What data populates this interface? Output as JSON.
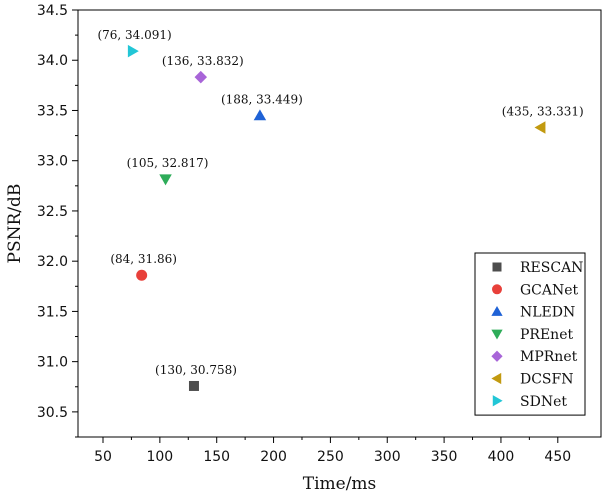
{
  "chart_data": {
    "type": "scatter",
    "title": "",
    "xlabel": "Time/ms",
    "ylabel": "PSNR/dB",
    "xlim": [
      28,
      488
    ],
    "ylim": [
      30.25,
      34.5
    ],
    "xticks": [
      50,
      100,
      150,
      200,
      250,
      300,
      350,
      400,
      450
    ],
    "yticks": [
      30.5,
      31.0,
      31.5,
      32.0,
      32.5,
      33.0,
      33.5,
      34.0,
      34.5
    ],
    "xtick_labels": [
      "50",
      "100",
      "150",
      "200",
      "250",
      "300",
      "350",
      "400",
      "450"
    ],
    "ytick_labels": [
      "30.5",
      "31.0",
      "31.5",
      "32.0",
      "32.5",
      "33.0",
      "33.5",
      "34.0",
      "34.5"
    ],
    "legend_position": "bottom-right",
    "series": [
      {
        "name": "RESCAN",
        "x": 130,
        "y": 30.758,
        "label": "(130, 30.758)",
        "color": "#4d4d4d",
        "marker": "square"
      },
      {
        "name": "GCANet",
        "x": 84,
        "y": 31.86,
        "label": "(84, 31.86)",
        "color": "#e8403a",
        "marker": "circle"
      },
      {
        "name": "NLEDN",
        "x": 188,
        "y": 33.449,
        "label": "(188, 33.449)",
        "color": "#1f62d6",
        "marker": "triangle-up"
      },
      {
        "name": "PREnet",
        "x": 105,
        "y": 32.817,
        "label": "(105, 32.817)",
        "color": "#2eac59",
        "marker": "triangle-down"
      },
      {
        "name": "MPRnet",
        "x": 136,
        "y": 33.832,
        "label": "(136, 33.832)",
        "color": "#a865d8",
        "marker": "diamond"
      },
      {
        "name": "DCSFN",
        "x": 435,
        "y": 33.331,
        "label": "(435, 33.331)",
        "color": "#c29a10",
        "marker": "triangle-left"
      },
      {
        "name": "SDNet",
        "x": 76,
        "y": 34.091,
        "label": "(76, 34.091)",
        "color": "#22c6d6",
        "marker": "triangle-right"
      }
    ]
  }
}
